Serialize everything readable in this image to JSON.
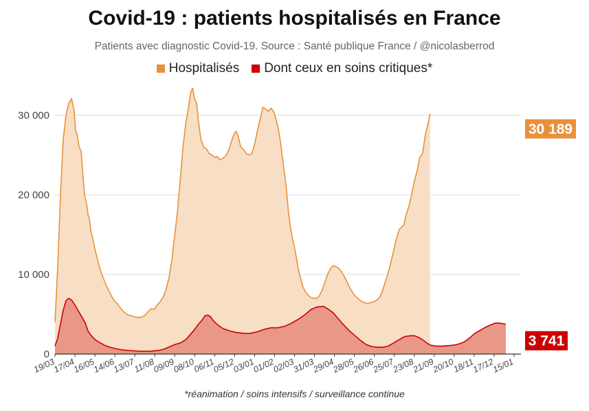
{
  "chart_data": {
    "type": "area",
    "title": "Covid-19 : patients hospitalisés en France",
    "subtitle": "Patients avec diagnostic Covid-19. Source : Santé publique France / @nicolasberrod",
    "footnote": "*réanimation / soins intensifs / surveillance continue",
    "y_ticks": [
      0,
      10000,
      20000,
      30000
    ],
    "y_tick_labels": [
      "0",
      "10 000",
      "20 000",
      "30 000"
    ],
    "ylim": [
      0,
      35000
    ],
    "grid": true,
    "legend_position": "top",
    "x_tick_labels": [
      "19/03",
      "17/04",
      "16/05",
      "14/06",
      "13/07",
      "11/08",
      "09/09",
      "08/10",
      "06/11",
      "05/12",
      "03/01",
      "01/02",
      "02/03",
      "31/03",
      "29/04",
      "28/05",
      "26/06",
      "25/07",
      "23/08",
      "21/09",
      "20/10",
      "18/11",
      "17/12",
      "15/01"
    ],
    "x_tick_index": [
      0,
      29,
      58,
      87,
      116,
      145,
      174,
      203,
      232,
      261,
      290,
      319,
      348,
      377,
      406,
      435,
      464,
      493,
      522,
      551,
      580,
      609,
      638,
      667
    ],
    "x_last_index": 677,
    "series": [
      {
        "name": "Hospitalisés",
        "color": "#e8913a",
        "fill": "#f8dec5",
        "end_label": "30 189",
        "points": [
          [
            0,
            4000
          ],
          [
            4,
            11000
          ],
          [
            8,
            20000
          ],
          [
            12,
            27000
          ],
          [
            16,
            30000
          ],
          [
            20,
            31500
          ],
          [
            24,
            32100
          ],
          [
            28,
            30500
          ],
          [
            30,
            28000
          ],
          [
            32,
            27700
          ],
          [
            35,
            26000
          ],
          [
            38,
            25500
          ],
          [
            40,
            23000
          ],
          [
            43,
            20000
          ],
          [
            46,
            18800
          ],
          [
            48,
            17500
          ],
          [
            50,
            17000
          ],
          [
            52,
            15500
          ],
          [
            55,
            14500
          ],
          [
            58,
            13200
          ],
          [
            62,
            11800
          ],
          [
            66,
            10500
          ],
          [
            70,
            9600
          ],
          [
            74,
            8700
          ],
          [
            78,
            8000
          ],
          [
            82,
            7300
          ],
          [
            86,
            6700
          ],
          [
            90,
            6400
          ],
          [
            95,
            5800
          ],
          [
            100,
            5300
          ],
          [
            106,
            4900
          ],
          [
            112,
            4800
          ],
          [
            118,
            4600
          ],
          [
            124,
            4600
          ],
          [
            130,
            4800
          ],
          [
            136,
            5400
          ],
          [
            140,
            5700
          ],
          [
            144,
            5600
          ],
          [
            148,
            6100
          ],
          [
            153,
            6600
          ],
          [
            158,
            7300
          ],
          [
            162,
            8300
          ],
          [
            166,
            9700
          ],
          [
            170,
            12000
          ],
          [
            174,
            15000
          ],
          [
            178,
            18000
          ],
          [
            182,
            22000
          ],
          [
            186,
            26000
          ],
          [
            190,
            29000
          ],
          [
            194,
            31000
          ],
          [
            197,
            32800
          ],
          [
            200,
            33400
          ],
          [
            203,
            32000
          ],
          [
            206,
            31500
          ],
          [
            208,
            29500
          ],
          [
            212,
            27000
          ],
          [
            216,
            26000
          ],
          [
            220,
            25800
          ],
          [
            224,
            25200
          ],
          [
            228,
            25000
          ],
          [
            232,
            24700
          ],
          [
            236,
            24800
          ],
          [
            240,
            24400
          ],
          [
            244,
            24600
          ],
          [
            248,
            24900
          ],
          [
            252,
            25500
          ],
          [
            256,
            26600
          ],
          [
            260,
            27600
          ],
          [
            263,
            28000
          ],
          [
            266,
            27400
          ],
          [
            270,
            26000
          ],
          [
            274,
            25700
          ],
          [
            278,
            25200
          ],
          [
            282,
            25000
          ],
          [
            286,
            25200
          ],
          [
            290,
            26300
          ],
          [
            294,
            28000
          ],
          [
            298,
            29500
          ],
          [
            302,
            31000
          ],
          [
            306,
            30800
          ],
          [
            310,
            30500
          ],
          [
            314,
            30900
          ],
          [
            318,
            30400
          ],
          [
            321,
            29500
          ],
          [
            324,
            28500
          ],
          [
            327,
            27000
          ],
          [
            330,
            25000
          ],
          [
            333,
            23000
          ],
          [
            336,
            21000
          ],
          [
            339,
            18000
          ],
          [
            342,
            16000
          ],
          [
            345,
            14500
          ],
          [
            348,
            13400
          ],
          [
            351,
            12000
          ],
          [
            354,
            10500
          ],
          [
            357,
            9500
          ],
          [
            360,
            8500
          ],
          [
            364,
            7800
          ],
          [
            368,
            7400
          ],
          [
            372,
            7100
          ],
          [
            376,
            7000
          ],
          [
            380,
            7000
          ],
          [
            384,
            7300
          ],
          [
            388,
            8000
          ],
          [
            392,
            9000
          ],
          [
            396,
            10000
          ],
          [
            400,
            10700
          ],
          [
            404,
            11100
          ],
          [
            408,
            11000
          ],
          [
            412,
            10800
          ],
          [
            416,
            10400
          ],
          [
            420,
            9800
          ],
          [
            424,
            9100
          ],
          [
            428,
            8400
          ],
          [
            432,
            7800
          ],
          [
            436,
            7300
          ],
          [
            440,
            7000
          ],
          [
            444,
            6700
          ],
          [
            448,
            6500
          ],
          [
            452,
            6400
          ],
          [
            456,
            6400
          ],
          [
            460,
            6500
          ],
          [
            464,
            6600
          ],
          [
            468,
            6800
          ],
          [
            472,
            7200
          ],
          [
            476,
            8000
          ],
          [
            480,
            9100
          ],
          [
            484,
            10200
          ],
          [
            488,
            11500
          ],
          [
            492,
            13000
          ],
          [
            496,
            14500
          ],
          [
            500,
            15600
          ],
          [
            504,
            16000
          ],
          [
            507,
            16200
          ],
          [
            510,
            17500
          ],
          [
            514,
            18500
          ],
          [
            518,
            20000
          ],
          [
            522,
            21700
          ],
          [
            526,
            23000
          ],
          [
            530,
            24700
          ],
          [
            534,
            25200
          ],
          [
            538,
            27500
          ],
          [
            542,
            29000
          ],
          [
            545,
            30189
          ]
        ]
      },
      {
        "name": "Dont ceux en soins critiques*",
        "color": "#cc0000",
        "fill": "#e99787",
        "end_label": "3 741",
        "points": [
          [
            0,
            1000
          ],
          [
            4,
            2000
          ],
          [
            8,
            3800
          ],
          [
            12,
            5500
          ],
          [
            16,
            6700
          ],
          [
            20,
            7000
          ],
          [
            24,
            6800
          ],
          [
            28,
            6300
          ],
          [
            32,
            5700
          ],
          [
            36,
            5100
          ],
          [
            40,
            4500
          ],
          [
            44,
            3900
          ],
          [
            48,
            2900
          ],
          [
            52,
            2400
          ],
          [
            56,
            2000
          ],
          [
            60,
            1700
          ],
          [
            66,
            1400
          ],
          [
            72,
            1100
          ],
          [
            80,
            850
          ],
          [
            90,
            650
          ],
          [
            100,
            500
          ],
          [
            110,
            430
          ],
          [
            120,
            370
          ],
          [
            130,
            350
          ],
          [
            140,
            370
          ],
          [
            150,
            450
          ],
          [
            158,
            600
          ],
          [
            166,
            900
          ],
          [
            174,
            1200
          ],
          [
            182,
            1400
          ],
          [
            190,
            1800
          ],
          [
            196,
            2400
          ],
          [
            202,
            3000
          ],
          [
            208,
            3700
          ],
          [
            214,
            4300
          ],
          [
            218,
            4800
          ],
          [
            222,
            4900
          ],
          [
            226,
            4700
          ],
          [
            230,
            4200
          ],
          [
            236,
            3700
          ],
          [
            244,
            3200
          ],
          [
            254,
            2900
          ],
          [
            264,
            2700
          ],
          [
            274,
            2600
          ],
          [
            284,
            2600
          ],
          [
            294,
            2800
          ],
          [
            304,
            3100
          ],
          [
            314,
            3300
          ],
          [
            324,
            3300
          ],
          [
            334,
            3500
          ],
          [
            344,
            3900
          ],
          [
            354,
            4400
          ],
          [
            364,
            5000
          ],
          [
            372,
            5600
          ],
          [
            380,
            5900
          ],
          [
            390,
            6000
          ],
          [
            396,
            5700
          ],
          [
            404,
            5200
          ],
          [
            412,
            4400
          ],
          [
            420,
            3600
          ],
          [
            428,
            2900
          ],
          [
            436,
            2300
          ],
          [
            444,
            1700
          ],
          [
            452,
            1200
          ],
          [
            460,
            950
          ],
          [
            468,
            850
          ],
          [
            476,
            850
          ],
          [
            484,
            1000
          ],
          [
            492,
            1400
          ],
          [
            500,
            1800
          ],
          [
            508,
            2200
          ],
          [
            516,
            2300
          ],
          [
            522,
            2300
          ],
          [
            528,
            2100
          ],
          [
            534,
            1800
          ],
          [
            540,
            1400
          ],
          [
            546,
            1100
          ],
          [
            554,
            1000
          ],
          [
            562,
            1000
          ],
          [
            570,
            1050
          ],
          [
            578,
            1100
          ],
          [
            586,
            1250
          ],
          [
            594,
            1500
          ],
          [
            602,
            2000
          ],
          [
            610,
            2600
          ],
          [
            618,
            3000
          ],
          [
            626,
            3400
          ],
          [
            634,
            3700
          ],
          [
            640,
            3900
          ],
          [
            645,
            3900
          ],
          [
            648,
            3850
          ],
          [
            652,
            3800
          ],
          [
            655,
            3741
          ]
        ]
      }
    ]
  }
}
